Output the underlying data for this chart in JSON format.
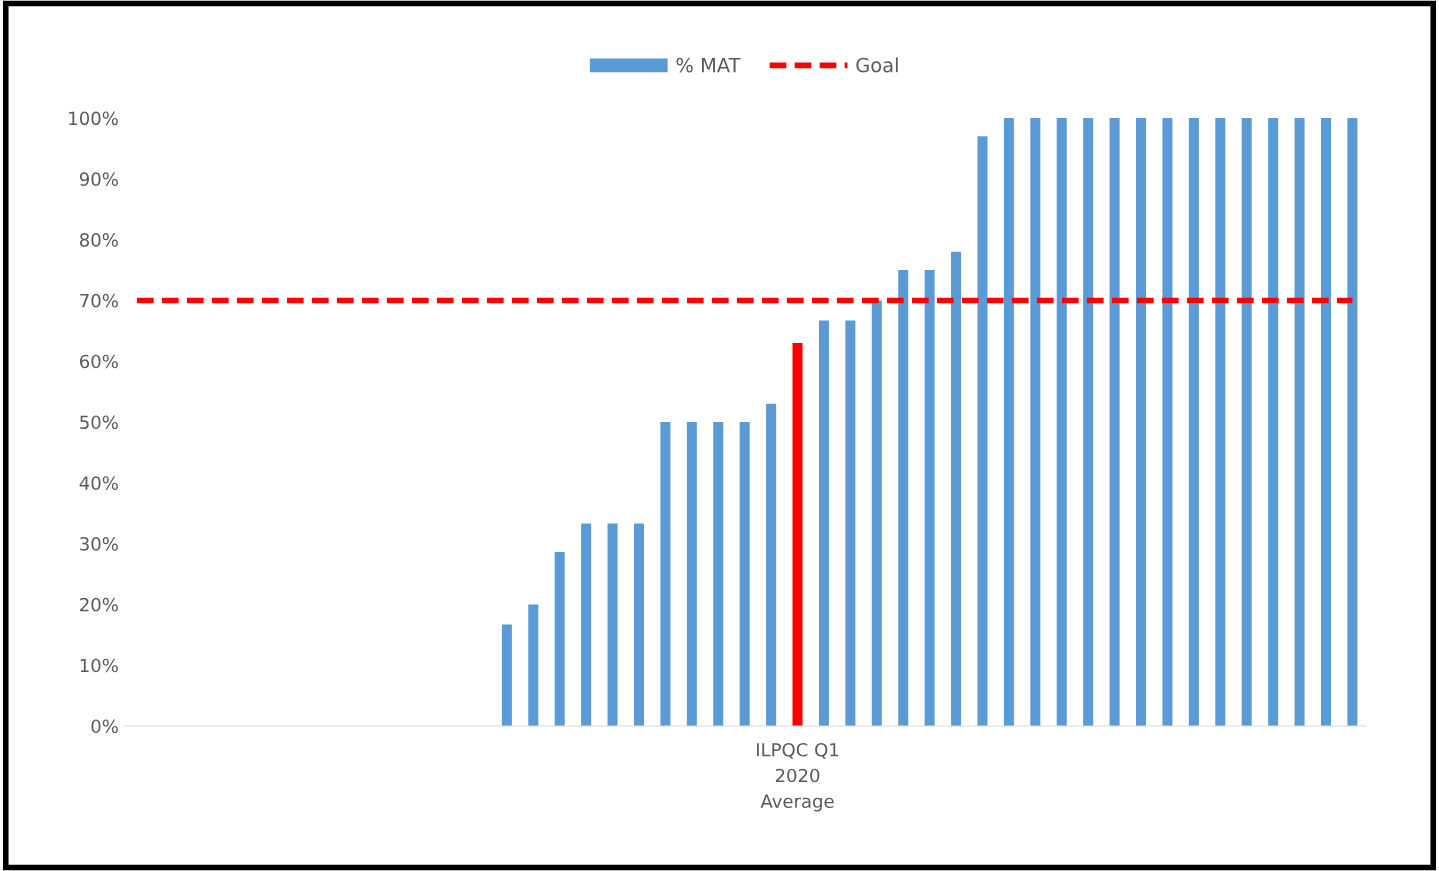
{
  "chart_data": {
    "type": "bar",
    "categories": [
      null,
      null,
      null,
      null,
      null,
      null,
      null,
      null,
      null,
      null,
      null,
      null,
      null,
      null,
      null,
      null,
      null,
      null,
      null,
      null,
      null,
      null,
      null,
      null,
      null,
      "ILPQC Q1\n2020\nAverage",
      null,
      null,
      null,
      null,
      null,
      null,
      null,
      null,
      null,
      null,
      null,
      null,
      null,
      null,
      null,
      null,
      null,
      null,
      null,
      null,
      null
    ],
    "series": [
      {
        "name": "% MAT",
        "color": "#5b9bd5",
        "colors": [
          "#5b9bd5",
          "#5b9bd5",
          "#5b9bd5",
          "#5b9bd5",
          "#5b9bd5",
          "#5b9bd5",
          "#5b9bd5",
          "#5b9bd5",
          "#5b9bd5",
          "#5b9bd5",
          "#5b9bd5",
          "#5b9bd5",
          "#5b9bd5",
          "#5b9bd5",
          "#5b9bd5",
          "#5b9bd5",
          "#5b9bd5",
          "#5b9bd5",
          "#5b9bd5",
          "#5b9bd5",
          "#5b9bd5",
          "#5b9bd5",
          "#5b9bd5",
          "#5b9bd5",
          "#5b9bd5",
          "#ff0000",
          "#5b9bd5",
          "#5b9bd5",
          "#5b9bd5",
          "#5b9bd5",
          "#5b9bd5",
          "#5b9bd5",
          "#5b9bd5",
          "#5b9bd5",
          "#5b9bd5",
          "#5b9bd5",
          "#5b9bd5",
          "#5b9bd5",
          "#5b9bd5",
          "#5b9bd5",
          "#5b9bd5",
          "#5b9bd5",
          "#5b9bd5",
          "#5b9bd5",
          "#5b9bd5",
          "#5b9bd5",
          "#5b9bd5"
        ],
        "values": [
          null,
          null,
          null,
          null,
          null,
          null,
          null,
          null,
          null,
          null,
          null,
          null,
          null,
          null,
          16.7,
          20,
          28.6,
          33.3,
          33.3,
          33.3,
          50,
          50,
          50,
          50,
          53,
          63,
          66.7,
          66.7,
          70,
          75,
          75,
          78,
          97,
          100,
          100,
          100,
          100,
          100,
          100,
          100,
          100,
          100,
          100,
          100,
          100,
          100,
          100
        ]
      },
      {
        "name": "Goal",
        "type": "line",
        "color": "#ff0000",
        "line_style": "dashed",
        "values": [
          70,
          70,
          70,
          70,
          70,
          70,
          70,
          70,
          70,
          70,
          70,
          70,
          70,
          70,
          70,
          70,
          70,
          70,
          70,
          70,
          70,
          70,
          70,
          70,
          70,
          70,
          70,
          70,
          70,
          70,
          70,
          70,
          70,
          70,
          70,
          70,
          70,
          70,
          70,
          70,
          70,
          70,
          70,
          70,
          70,
          70,
          70
        ]
      }
    ],
    "ylim": [
      0,
      100
    ],
    "yticks": [
      {
        "value": 0,
        "label": "0%"
      },
      {
        "value": 10,
        "label": "10%"
      },
      {
        "value": 20,
        "label": "20%"
      },
      {
        "value": 30,
        "label": "30%"
      },
      {
        "value": 40,
        "label": "40%"
      },
      {
        "value": 50,
        "label": "50%"
      },
      {
        "value": 60,
        "label": "60%"
      },
      {
        "value": 70,
        "label": "70%"
      },
      {
        "value": 80,
        "label": "80%"
      },
      {
        "value": 90,
        "label": "90%"
      },
      {
        "value": 100,
        "label": "100%"
      }
    ],
    "legend": "top"
  }
}
